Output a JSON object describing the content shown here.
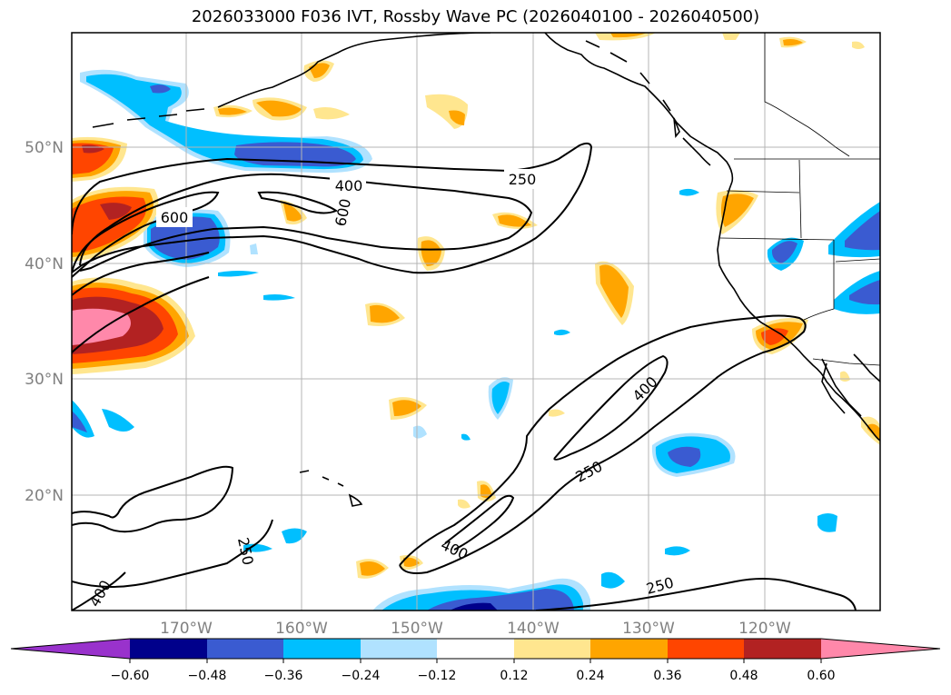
{
  "title": "2026033000 F036 IVT, Rossby Wave PC (2026040100 - 2026040500)",
  "axes": {
    "longitude_labels": [
      "170°W",
      "160°W",
      "150°W",
      "140°W",
      "130°W",
      "120°W"
    ],
    "latitude_labels": [
      "50°N",
      "40°N",
      "30°N",
      "20°N"
    ]
  },
  "contour_labels": {
    "l250_a": "250",
    "l400_a": "400",
    "l600_a": "600",
    "l600_b": "600",
    "l400_b": "400",
    "l250_b": "250",
    "l250_c": "250",
    "l400_c": "400",
    "l250_d": "250",
    "l400_d": "400"
  },
  "colorbar": {
    "tick_labels": [
      "−0.60",
      "−0.48",
      "−0.36",
      "−0.24",
      "−0.12",
      "0.12",
      "0.24",
      "0.36",
      "0.48",
      "0.60"
    ],
    "colors": [
      "#9932cc",
      "#00008b",
      "#3a5bd1",
      "#00bfff",
      "#b0e2ff",
      "#ffffff",
      "#ffe68f",
      "#ffa500",
      "#ff4500",
      "#b22222",
      "#ff88aa"
    ]
  },
  "fill_colors": {
    "neg1": "#b0e2ff",
    "neg2": "#00bfff",
    "neg3": "#3a5bd1",
    "neg4": "#00008b",
    "pos1": "#ffe68f",
    "pos2": "#ffa500",
    "pos3": "#ff4500",
    "pos4": "#b22222",
    "pos5": "#ff88aa"
  }
}
